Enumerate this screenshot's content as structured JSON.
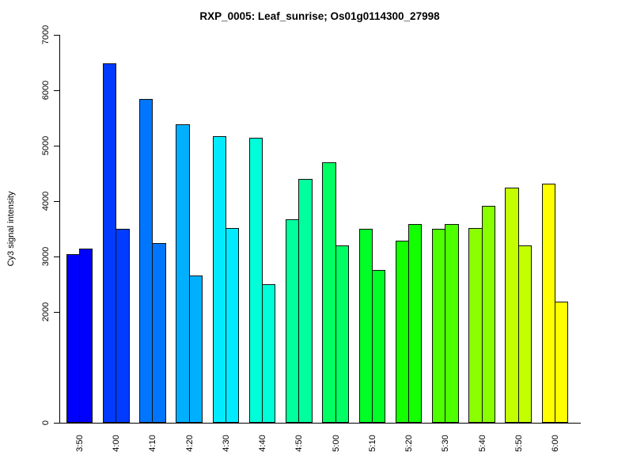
{
  "chart_data": {
    "type": "bar",
    "title": "RXP_0005: Leaf_sunrise; Os01g0114300_27998",
    "xlabel": "",
    "ylabel": "Cy3 signal intensity",
    "categories": [
      "3:50",
      "4:00",
      "4:10",
      "4:20",
      "4:30",
      "4:40",
      "4:50",
      "5:00",
      "5:10",
      "5:20",
      "5:30",
      "5:40",
      "5:50",
      "6:00"
    ],
    "series": [
      {
        "name": "bar-left",
        "values": [
          3040,
          6480,
          5840,
          5380,
          5170,
          5150,
          3670,
          4700,
          3500,
          3280,
          3500,
          3520,
          4240,
          4310
        ]
      },
      {
        "name": "bar-right",
        "values": [
          3140,
          3500,
          3250,
          2660,
          3520,
          2500,
          4400,
          3200,
          2760,
          3580,
          3580,
          3920,
          3200,
          2180
        ]
      }
    ],
    "bar_colors": [
      "#0000FF",
      "#003BFF",
      "#0076FF",
      "#00B0FF",
      "#00EBFF",
      "#00FFD8",
      "#00FF9D",
      "#00FF62",
      "#00FF27",
      "#14FF00",
      "#4EFF00",
      "#89FF00",
      "#C4FF00",
      "#FFFF00"
    ],
    "bar_border_color": "#111111",
    "y_ticks": [
      0,
      2000,
      3000,
      4000,
      5000,
      6000,
      7000
    ],
    "ylim": [
      0,
      7000
    ],
    "grid": "off",
    "legend": "none",
    "background_color": "#FFFFFF",
    "axis_color": "#000000"
  }
}
